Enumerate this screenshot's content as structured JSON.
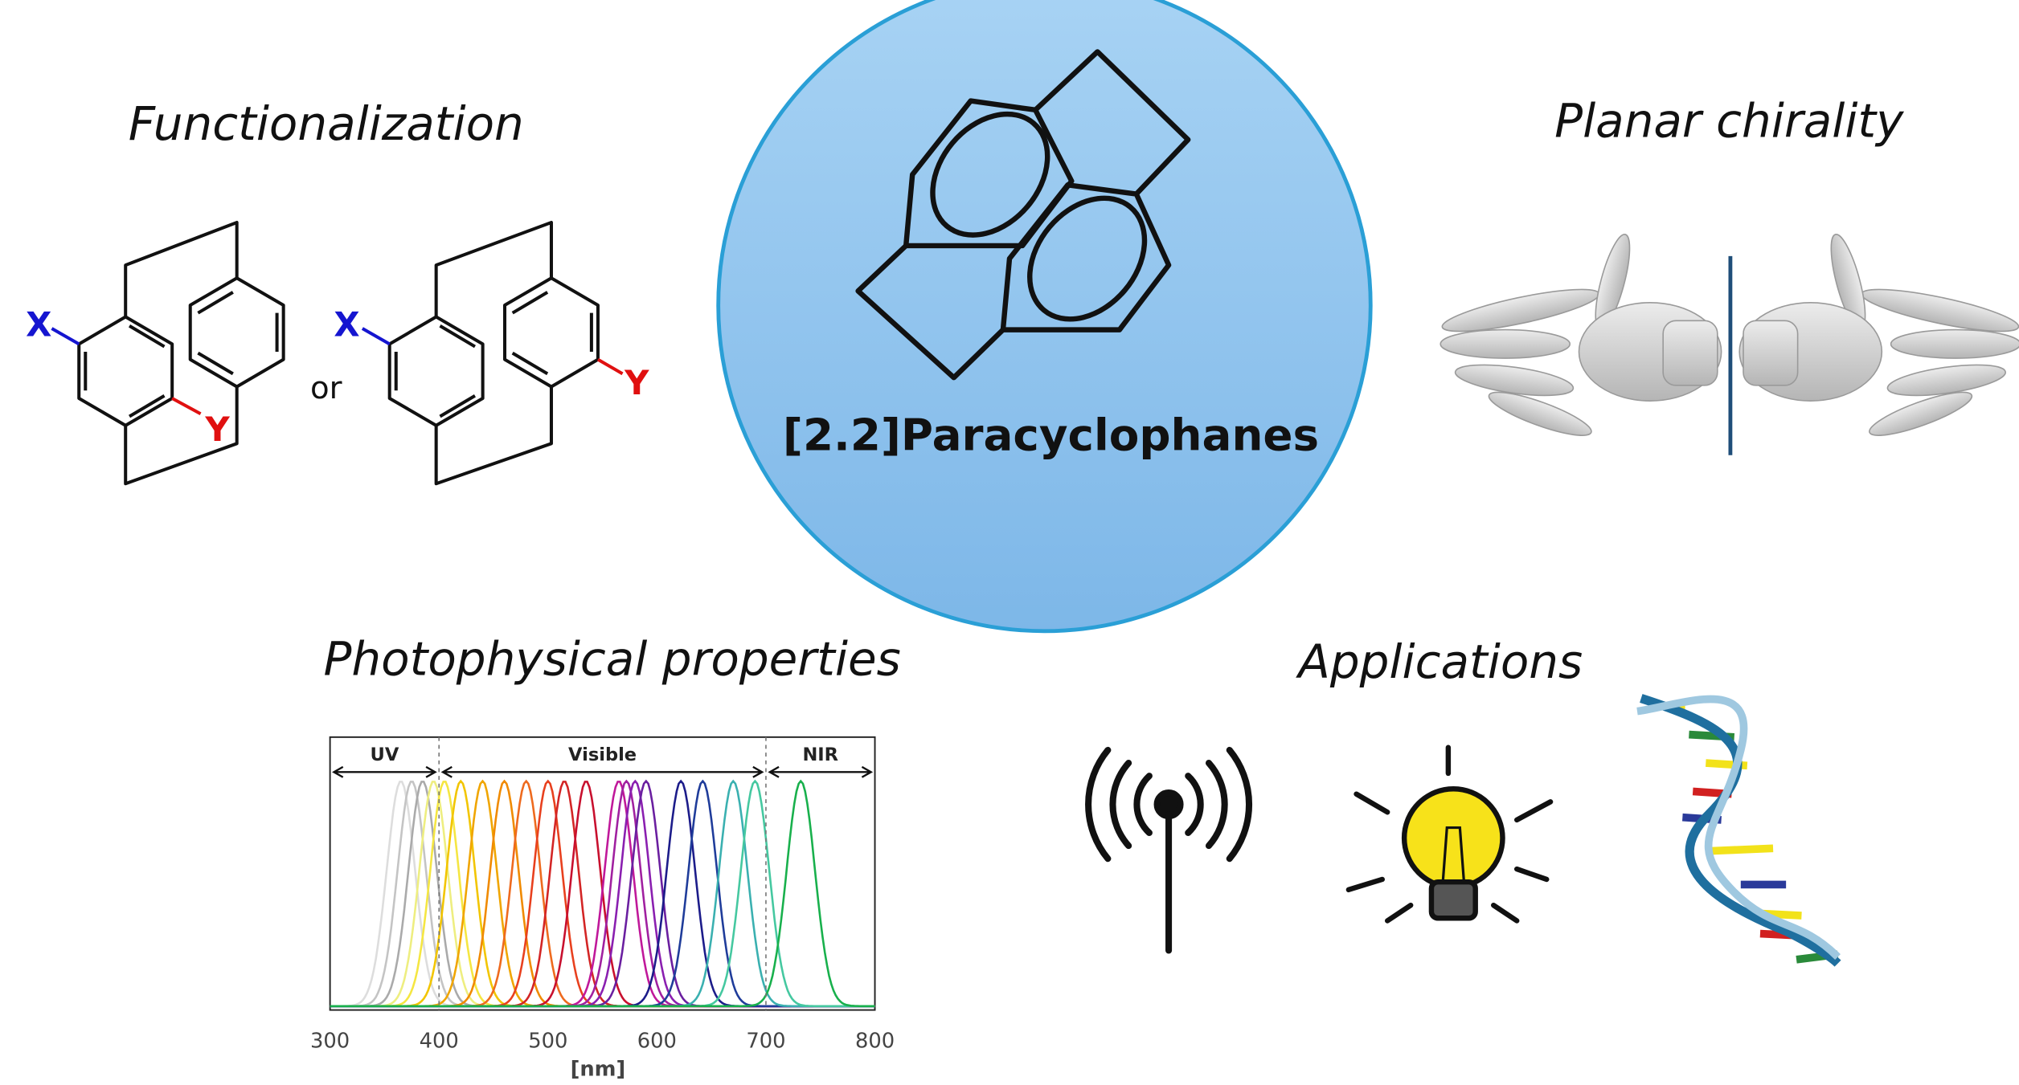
{
  "titles": {
    "functionalization": "Functionalization",
    "planar_chirality": "Planar chirality",
    "photophysical": "Photophysical properties",
    "applications": "Applications"
  },
  "center_label": "[2.2]Paracyclophanes",
  "molecules": [
    {
      "x": "X",
      "y": "Y"
    },
    {
      "x": "X",
      "y": "Y"
    }
  ],
  "or": "or",
  "spectrum": {
    "type": "line",
    "xlim": [
      300,
      800
    ],
    "xticks": [
      300,
      400,
      500,
      600,
      700,
      800
    ],
    "x_label": "[nm]",
    "regions": [
      {
        "label": "UV",
        "range": [
          300,
          400
        ]
      },
      {
        "label": "Visible",
        "range": [
          400,
          700
        ]
      },
      {
        "label": "NIR",
        "range": [
          700,
          800
        ]
      }
    ],
    "curves": [
      {
        "peak": 365,
        "color": "#dddddd"
      },
      {
        "peak": 375,
        "color": "#c4c4c4"
      },
      {
        "peak": 385,
        "color": "#aaaaaa"
      },
      {
        "peak": 395,
        "color": "#eeee80"
      },
      {
        "peak": 405,
        "color": "#f5e642"
      },
      {
        "peak": 420,
        "color": "#f2c500"
      },
      {
        "peak": 440,
        "color": "#f0a500"
      },
      {
        "peak": 460,
        "color": "#f08a00"
      },
      {
        "peak": 480,
        "color": "#ee6a1e"
      },
      {
        "peak": 500,
        "color": "#e8401e"
      },
      {
        "peak": 515,
        "color": "#d32525"
      },
      {
        "peak": 535,
        "color": "#c8102e"
      },
      {
        "peak": 565,
        "color": "#c0189a"
      },
      {
        "peak": 572,
        "color": "#a020a0"
      },
      {
        "peak": 580,
        "color": "#8a1fb0"
      },
      {
        "peak": 590,
        "color": "#6a1fa0"
      },
      {
        "peak": 622,
        "color": "#1c1c8a"
      },
      {
        "peak": 642,
        "color": "#1f3c9a"
      },
      {
        "peak": 670,
        "color": "#3ab0b0"
      },
      {
        "peak": 690,
        "color": "#45c8a0"
      },
      {
        "peak": 732,
        "color": "#18b04c"
      }
    ]
  }
}
